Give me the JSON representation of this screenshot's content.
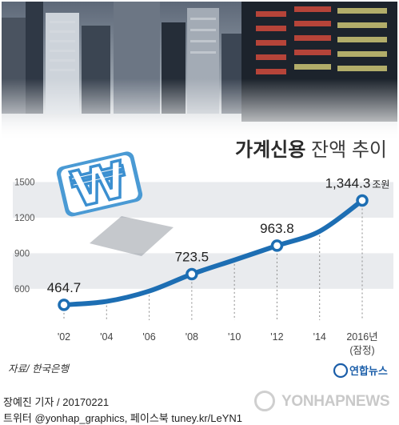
{
  "chart_data": {
    "type": "line",
    "title_bold": "가계신용",
    "title_rest": " 잔액 추이",
    "x": [
      2002,
      2004,
      2006,
      2008,
      2010,
      2012,
      2014,
      2016
    ],
    "x_tick_labels": [
      "'02",
      "'04",
      "'06",
      "'08",
      "'10",
      "'12",
      "'14",
      "2016년"
    ],
    "x_last_note": "(잠정)",
    "series": [
      {
        "values": [
          464.7,
          494,
          581,
          723.5,
          843,
          963.8,
          1085,
          1344.3
        ]
      }
    ],
    "data_labels": {
      "2002": "464.7",
      "2008": "723.5",
      "2012": "963.8",
      "2016": "1,344.3"
    },
    "value_unit": "조원",
    "y_ticks": [
      600,
      900,
      1200,
      1500
    ],
    "ylim": [
      390,
      1530
    ],
    "grid": "alternating horizontal bands",
    "source": "자료/ 한국은행",
    "logo_text": "연합뉴스",
    "colors": {
      "line": "#1d6eb3",
      "marker_fill": "#ffffff",
      "band": "#e9ebee",
      "title": "#2b2b2b",
      "logo": "#1b5ea9"
    }
  },
  "footer": {
    "credit": "장예진 기자 / 20170221",
    "sns": "트위터 @yonhap_graphics, 페이스북 tuney.kr/LeYN1"
  },
  "watermark": "YONHAPNEWS"
}
